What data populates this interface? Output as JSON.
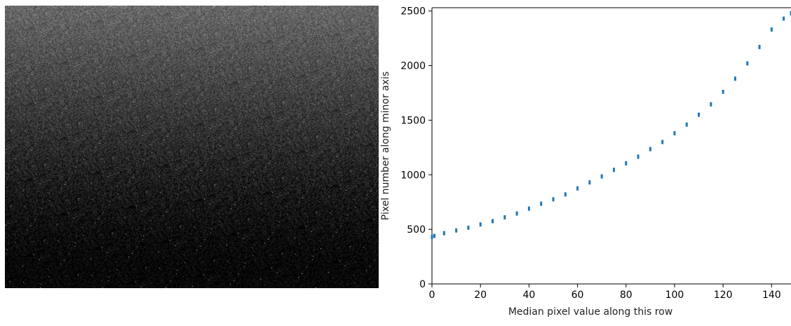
{
  "chart_data": {
    "type": "scatter",
    "xlabel": "Median pixel value along this row",
    "ylabel": "Pixel number along minor axis",
    "xlim": [
      0,
      148
    ],
    "ylim": [
      0,
      2530
    ],
    "xticks": [
      0,
      20,
      40,
      60,
      80,
      100,
      120,
      140
    ],
    "yticks": [
      0,
      500,
      1000,
      1500,
      2000,
      2500
    ],
    "grid": false,
    "series": [
      {
        "color": "#1f77b4",
        "x": [
          0,
          1,
          5,
          10,
          15,
          20,
          25,
          30,
          35,
          40,
          45,
          50,
          55,
          60,
          65,
          70,
          75,
          80,
          85,
          90,
          95,
          100,
          105,
          110,
          115,
          120,
          125,
          130,
          135,
          140,
          145,
          148
        ],
        "y": [
          430,
          440,
          465,
          490,
          515,
          545,
          575,
          610,
          645,
          690,
          735,
          775,
          820,
          875,
          930,
          985,
          1045,
          1105,
          1165,
          1235,
          1300,
          1380,
          1460,
          1550,
          1645,
          1760,
          1880,
          2020,
          2170,
          2330,
          2430,
          2480
        ]
      }
    ]
  },
  "left_image": {
    "description_colors": {
      "top": "#6a6a6a",
      "bottom": "#000000"
    }
  }
}
